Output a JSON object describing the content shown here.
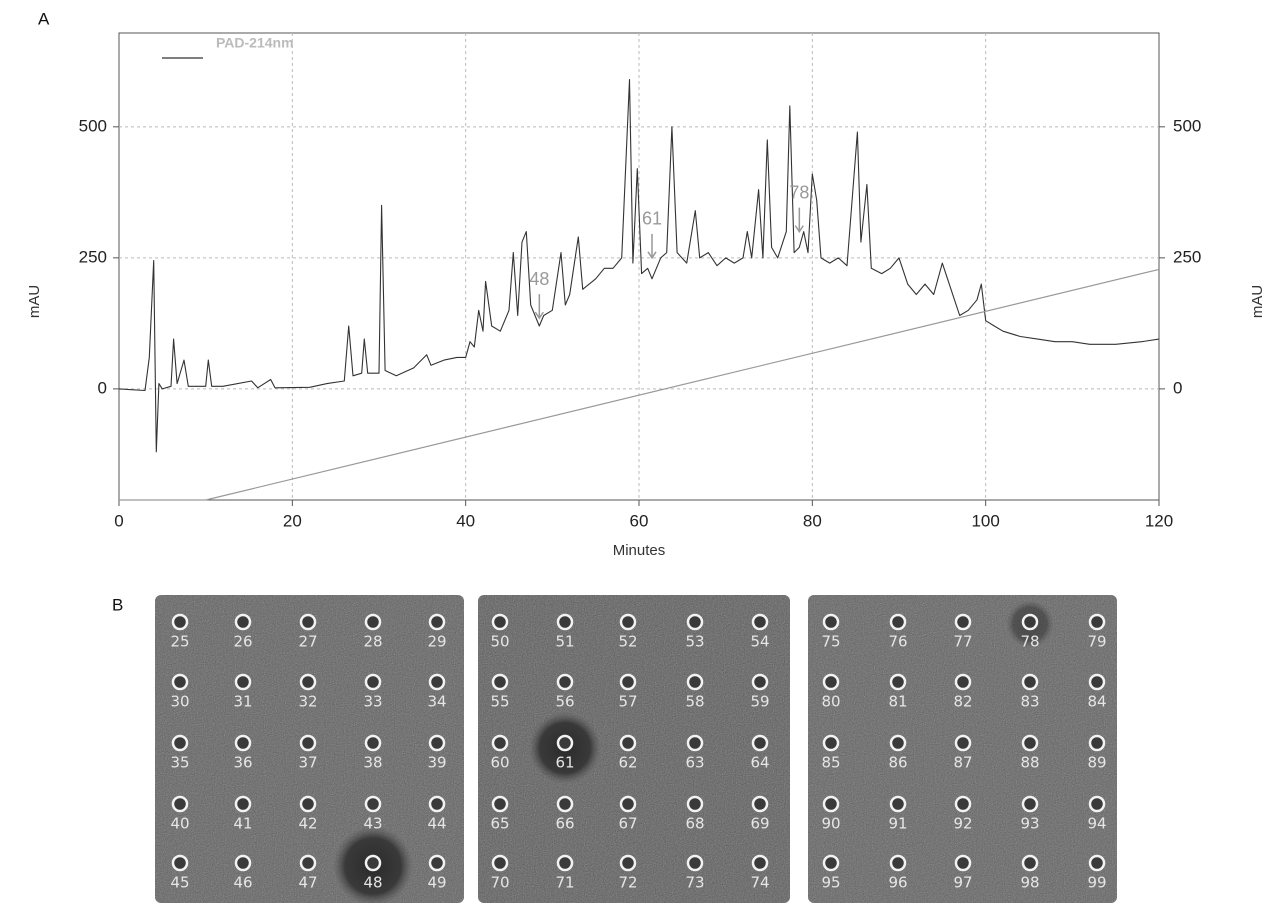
{
  "panel_labels": [
    "A",
    "B"
  ],
  "chart_data": {
    "type": "line",
    "x_label": "Minutes",
    "y_label": "mAU",
    "y2_label": "mAU",
    "xlim": [
      0,
      120
    ],
    "xticks": [
      0,
      20,
      40,
      60,
      80,
      100,
      120
    ],
    "ylim": [
      -212,
      679
    ],
    "yticks": [
      0,
      250,
      500
    ],
    "y2lim": [
      -212,
      679
    ],
    "y2ticks": [
      0,
      250,
      500
    ],
    "grid": true,
    "legend": "upper left",
    "series": [
      {
        "name": "PAD-214nm",
        "color": "#333333",
        "x": [
          0,
          3,
          3.5,
          4,
          4.3,
          4.6,
          5,
          6,
          6.3,
          6.7,
          7.5,
          8,
          10,
          10.3,
          10.7,
          12,
          15.3,
          16,
          17.5,
          18,
          22,
          24,
          26,
          26.5,
          27,
          28,
          28.3,
          28.7,
          30,
          30.3,
          30.7,
          32,
          34,
          35.5,
          36,
          37.5,
          39,
          40,
          40.5,
          41,
          41.5,
          42,
          42.3,
          43,
          44,
          45,
          45.5,
          46,
          46.5,
          47,
          47.5,
          48.5,
          49,
          50,
          51,
          51.5,
          52,
          53,
          53.5,
          55,
          56,
          57,
          58,
          58.9,
          59.3,
          59.8,
          60.3,
          61,
          61.5,
          62.5,
          63.2,
          63.8,
          64.4,
          65.5,
          66.5,
          67,
          68,
          69,
          70,
          71,
          72,
          72.5,
          73,
          73.8,
          74.3,
          74.8,
          75.3,
          76,
          77,
          77.4,
          77.9,
          78.5,
          79,
          79.5,
          80,
          80.5,
          81,
          82,
          83,
          84,
          85.2,
          85.6,
          86.3,
          86.8,
          88,
          89,
          90,
          91,
          92,
          93,
          94,
          95,
          96,
          97,
          98,
          99,
          99.5,
          100,
          101,
          102,
          104,
          106,
          108,
          110,
          112,
          115,
          118,
          120
        ],
        "values": [
          0,
          -3,
          60,
          245,
          -120,
          10,
          0,
          5,
          95,
          10,
          55,
          5,
          5,
          55,
          5,
          5,
          15,
          2,
          18,
          2,
          3,
          10,
          15,
          120,
          25,
          30,
          95,
          30,
          30,
          350,
          35,
          25,
          40,
          65,
          45,
          55,
          60,
          60,
          90,
          80,
          150,
          110,
          205,
          120,
          110,
          150,
          260,
          140,
          280,
          300,
          160,
          120,
          140,
          150,
          260,
          160,
          180,
          290,
          190,
          210,
          230,
          230,
          250,
          590,
          240,
          420,
          220,
          230,
          210,
          250,
          260,
          500,
          260,
          240,
          340,
          250,
          260,
          235,
          250,
          240,
          250,
          300,
          250,
          380,
          250,
          475,
          270,
          250,
          300,
          540,
          260,
          270,
          300,
          260,
          410,
          360,
          250,
          240,
          250,
          235,
          490,
          280,
          390,
          230,
          220,
          230,
          250,
          200,
          180,
          200,
          180,
          240,
          190,
          140,
          150,
          170,
          200,
          130,
          120,
          110,
          100,
          95,
          90,
          90,
          85,
          85,
          90,
          95
        ]
      },
      {
        "color": "#999999",
        "x": [
          0,
          10,
          120
        ],
        "values": [
          -212,
          -212,
          228
        ]
      }
    ],
    "annotations": [
      {
        "text": "48",
        "x": 48.5,
        "y": 135
      },
      {
        "text": "61",
        "x": 61.5,
        "y": 250
      },
      {
        "text": "78",
        "x": 78.5,
        "y": 300
      }
    ]
  },
  "plates": [
    {
      "wells": [
        25,
        26,
        27,
        28,
        29,
        30,
        31,
        32,
        33,
        34,
        35,
        36,
        37,
        38,
        39,
        40,
        41,
        42,
        43,
        44,
        45,
        46,
        47,
        48,
        49
      ]
    },
    {
      "wells": [
        50,
        51,
        52,
        53,
        54,
        55,
        56,
        57,
        58,
        59,
        60,
        61,
        62,
        63,
        64,
        65,
        66,
        67,
        68,
        69,
        70,
        71,
        72,
        73,
        74
      ]
    },
    {
      "wells": [
        75,
        76,
        77,
        78,
        79,
        80,
        81,
        82,
        83,
        84,
        85,
        86,
        87,
        88,
        89,
        90,
        91,
        92,
        93,
        94,
        95,
        96,
        97,
        98,
        99
      ]
    }
  ]
}
